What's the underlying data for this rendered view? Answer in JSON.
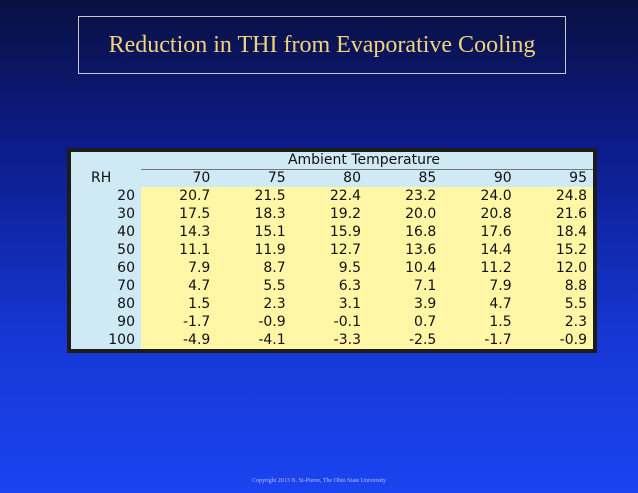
{
  "slide": {
    "title": "Reduction in THI from Evaporative Cooling",
    "copyright": "Copyright 2013 N. St-Pierre, The Ohio State University",
    "colors": {
      "title_text": "#f2d37a",
      "header_fill": "#cfe9f5",
      "value_fill": "#fff6a6"
    }
  },
  "table": {
    "super_header": "Ambient Temperature",
    "rh_header": "RH",
    "temps": [
      "70",
      "75",
      "80",
      "85",
      "90",
      "95"
    ],
    "rows": [
      {
        "rh": "20",
        "values": [
          "20.7",
          "21.5",
          "22.4",
          "23.2",
          "24.0",
          "24.8"
        ]
      },
      {
        "rh": "30",
        "values": [
          "17.5",
          "18.3",
          "19.2",
          "20.0",
          "20.8",
          "21.6"
        ]
      },
      {
        "rh": "40",
        "values": [
          "14.3",
          "15.1",
          "15.9",
          "16.8",
          "17.6",
          "18.4"
        ]
      },
      {
        "rh": "50",
        "values": [
          "11.1",
          "11.9",
          "12.7",
          "13.6",
          "14.4",
          "15.2"
        ]
      },
      {
        "rh": "60",
        "values": [
          "7.9",
          "8.7",
          "9.5",
          "10.4",
          "11.2",
          "12.0"
        ]
      },
      {
        "rh": "70",
        "values": [
          "4.7",
          "5.5",
          "6.3",
          "7.1",
          "7.9",
          "8.8"
        ]
      },
      {
        "rh": "80",
        "values": [
          "1.5",
          "2.3",
          "3.1",
          "3.9",
          "4.7",
          "5.5"
        ]
      },
      {
        "rh": "90",
        "values": [
          "-1.7",
          "-0.9",
          "-0.1",
          "0.7",
          "1.5",
          "2.3"
        ]
      },
      {
        "rh": "100",
        "values": [
          "-4.9",
          "-4.1",
          "-3.3",
          "-2.5",
          "-1.7",
          "-0.9"
        ]
      }
    ]
  }
}
